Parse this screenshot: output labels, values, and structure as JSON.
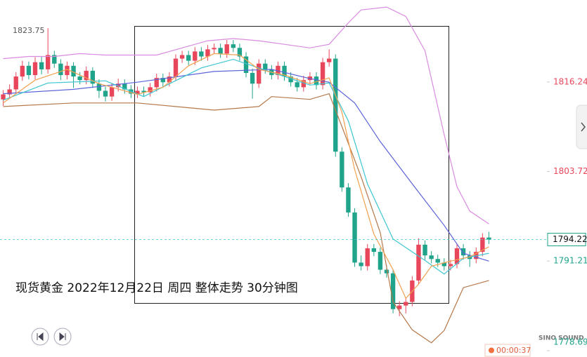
{
  "chart_data": {
    "type": "candlestick",
    "annotation": "现货黄金 2022年12月22日 周四  整体走势 30分钟图",
    "countdown": "00:00:37",
    "watermark": "SINO SOUND",
    "up_color": "#e8475b",
    "down_color": "#1fa38a",
    "ylim": [
      1778.69,
      1827.2
    ],
    "yticks": [
      1778.69,
      1791.21,
      1803.72,
      1816.24
    ],
    "open": [
      1813.8,
      1814.5,
      1815.2,
      1817.0,
      1818.5,
      1817.2,
      1819.0,
      1818.0,
      1820.0,
      1818.8,
      1817.2,
      1818.5,
      1817.0,
      1816.5,
      1817.8,
      1816.0,
      1815.0,
      1814.2,
      1815.5,
      1816.0,
      1815.2,
      1814.6,
      1815.0,
      1814.8,
      1815.5,
      1816.8,
      1816.2,
      1817.0,
      1819.5,
      1820.0,
      1819.2,
      1820.5,
      1819.8,
      1820.8,
      1821.0,
      1820.2,
      1821.5,
      1821.0,
      1819.8,
      1817.5,
      1816.0,
      1818.8,
      1818.0,
      1817.2,
      1818.5,
      1817.0,
      1816.2,
      1815.5,
      1816.5,
      1817.0,
      1815.8,
      1819.0,
      1819.5,
      1806.5,
      1801.5,
      1798.0,
      1791.0,
      1790.5,
      1793.0,
      1792.5,
      1790.0,
      1789.5,
      1784.5,
      1785.0,
      1785.5,
      1788.5,
      1793.5,
      1792.0,
      1791.5,
      1791.0,
      1790.5,
      1790.8,
      1793.0,
      1792.0,
      1791.5,
      1792.5,
      1794.5
    ],
    "high": [
      1815.1,
      1815.9,
      1817.6,
      1819.2,
      1819.1,
      1819.7,
      1819.8,
      1823.75,
      1820.6,
      1819.4,
      1819.1,
      1819.0,
      1817.6,
      1818.4,
      1818.3,
      1816.6,
      1815.6,
      1816.1,
      1816.7,
      1816.6,
      1815.8,
      1815.6,
      1815.6,
      1816.1,
      1817.4,
      1817.4,
      1817.6,
      1820.1,
      1820.6,
      1820.6,
      1821.1,
      1821.1,
      1821.4,
      1821.6,
      1821.6,
      1822.1,
      1822.1,
      1821.6,
      1820.4,
      1818.1,
      1819.4,
      1819.4,
      1818.6,
      1819.1,
      1819.1,
      1817.6,
      1816.8,
      1817.1,
      1817.6,
      1817.6,
      1819.6,
      1820.8,
      1820.1,
      1807.1,
      1802.1,
      1798.6,
      1792.0,
      1793.6,
      1793.6,
      1793.1,
      1790.6,
      1790.1,
      1785.6,
      1786.1,
      1789.1,
      1794.4,
      1794.1,
      1792.6,
      1792.1,
      1791.6,
      1791.4,
      1793.6,
      1793.6,
      1792.6,
      1793.1,
      1795.1,
      1795.3
    ],
    "low": [
      1812.9,
      1813.9,
      1814.6,
      1816.4,
      1816.6,
      1816.6,
      1817.3,
      1817.4,
      1818.2,
      1816.5,
      1816.6,
      1815.4,
      1815.9,
      1815.9,
      1815.4,
      1814.0,
      1813.5,
      1813.6,
      1814.9,
      1814.6,
      1814.0,
      1814.0,
      1814.2,
      1814.2,
      1814.9,
      1815.6,
      1815.6,
      1816.4,
      1818.9,
      1818.6,
      1818.6,
      1819.2,
      1819.2,
      1820.2,
      1819.6,
      1819.6,
      1820.4,
      1819.2,
      1816.9,
      1813.9,
      1815.4,
      1817.4,
      1816.6,
      1816.6,
      1816.4,
      1815.6,
      1814.9,
      1814.9,
      1815.9,
      1815.2,
      1815.2,
      1818.4,
      1805.8,
      1800.9,
      1797.4,
      1790.4,
      1789.9,
      1789.9,
      1791.9,
      1789.4,
      1788.9,
      1783.9,
      1783.5,
      1783.9,
      1784.9,
      1787.9,
      1791.4,
      1790.9,
      1790.4,
      1789.9,
      1789.9,
      1790.2,
      1791.4,
      1790.4,
      1790.9,
      1791.9,
      1793.6
    ],
    "close": [
      1814.5,
      1815.2,
      1817.0,
      1818.5,
      1817.2,
      1819.0,
      1818.0,
      1820.0,
      1818.8,
      1817.2,
      1818.5,
      1817.0,
      1816.5,
      1817.8,
      1816.0,
      1815.0,
      1814.2,
      1815.5,
      1816.0,
      1815.2,
      1814.6,
      1815.0,
      1814.8,
      1815.5,
      1816.8,
      1816.2,
      1817.0,
      1819.5,
      1820.0,
      1819.2,
      1820.5,
      1819.8,
      1820.8,
      1821.0,
      1820.2,
      1821.5,
      1821.0,
      1819.8,
      1817.5,
      1816.0,
      1818.8,
      1818.0,
      1817.2,
      1818.5,
      1817.0,
      1816.2,
      1815.5,
      1816.5,
      1817.0,
      1815.8,
      1819.0,
      1819.5,
      1806.5,
      1801.5,
      1798.0,
      1791.0,
      1790.5,
      1793.0,
      1792.5,
      1790.0,
      1789.5,
      1784.5,
      1785.0,
      1785.5,
      1788.5,
      1793.5,
      1792.0,
      1791.5,
      1791.0,
      1790.5,
      1790.8,
      1793.0,
      1792.0,
      1791.5,
      1792.5,
      1794.5,
      1794.22
    ],
    "lines": [
      {
        "color": "#d98be0",
        "x": [
          0,
          4,
          8,
          12,
          16,
          20,
          24,
          28,
          32,
          36,
          40,
          44,
          48,
          51,
          54,
          56,
          60,
          63,
          66,
          69,
          71,
          73,
          76
        ],
        "values": [
          1819.5,
          1819.8,
          1819.8,
          1820.2,
          1820.0,
          1820.0,
          1820.0,
          1821.0,
          1822.0,
          1822.3,
          1822.0,
          1821.5,
          1821.0,
          1821.5,
          1824.5,
          1826.3,
          1826.7,
          1825.4,
          1820.6,
          1808.9,
          1801.6,
          1798.2,
          1796.4
        ]
      },
      {
        "color": "#b5784a",
        "x": [
          0,
          11,
          21,
          33,
          40,
          42,
          48,
          51,
          53,
          56,
          59,
          61,
          64,
          67,
          69,
          72,
          76
        ],
        "values": [
          1812.8,
          1813.3,
          1813.3,
          1812.3,
          1812.8,
          1814.2,
          1813.8,
          1814.6,
          1810.0,
          1803.0,
          1795.2,
          1785.5,
          1781.6,
          1779.8,
          1781.5,
          1787.5,
          1788.5
        ]
      },
      {
        "color": "#5b63d8",
        "x": [
          0,
          11,
          21,
          33,
          42,
          48,
          51,
          55,
          59,
          64,
          69,
          72,
          76
        ],
        "values": [
          1814.6,
          1815.2,
          1816.2,
          1817.7,
          1818.0,
          1816.7,
          1816.2,
          1813.3,
          1807.9,
          1802.0,
          1796.2,
          1792.3,
          1791.2
        ]
      },
      {
        "color": "#3cc6d0",
        "x": [
          0,
          7,
          16,
          22,
          31,
          36,
          42,
          48,
          51,
          54,
          57,
          61,
          66,
          69,
          72,
          76
        ],
        "values": [
          1813.7,
          1816.1,
          1816.4,
          1814.2,
          1818.2,
          1819.4,
          1817.6,
          1815.8,
          1816.1,
          1810.8,
          1802.0,
          1794.3,
          1791.3,
          1789.4,
          1791.6,
          1792.3
        ]
      },
      {
        "color": "#f2a150",
        "x": [
          0,
          5,
          10,
          15,
          21,
          25,
          29,
          33,
          37,
          40,
          44,
          48,
          51,
          53,
          55,
          58,
          61,
          63,
          65,
          67,
          70,
          73,
          76
        ],
        "values": [
          1813.3,
          1816.5,
          1818.0,
          1816.0,
          1814.5,
          1815.5,
          1818.5,
          1820.2,
          1820.0,
          1818.0,
          1817.2,
          1816.0,
          1816.8,
          1812.0,
          1804.0,
          1795.0,
          1790.0,
          1786.0,
          1788.0,
          1790.5,
          1791.2,
          1791.8,
          1793.2
        ]
      }
    ]
  }
}
